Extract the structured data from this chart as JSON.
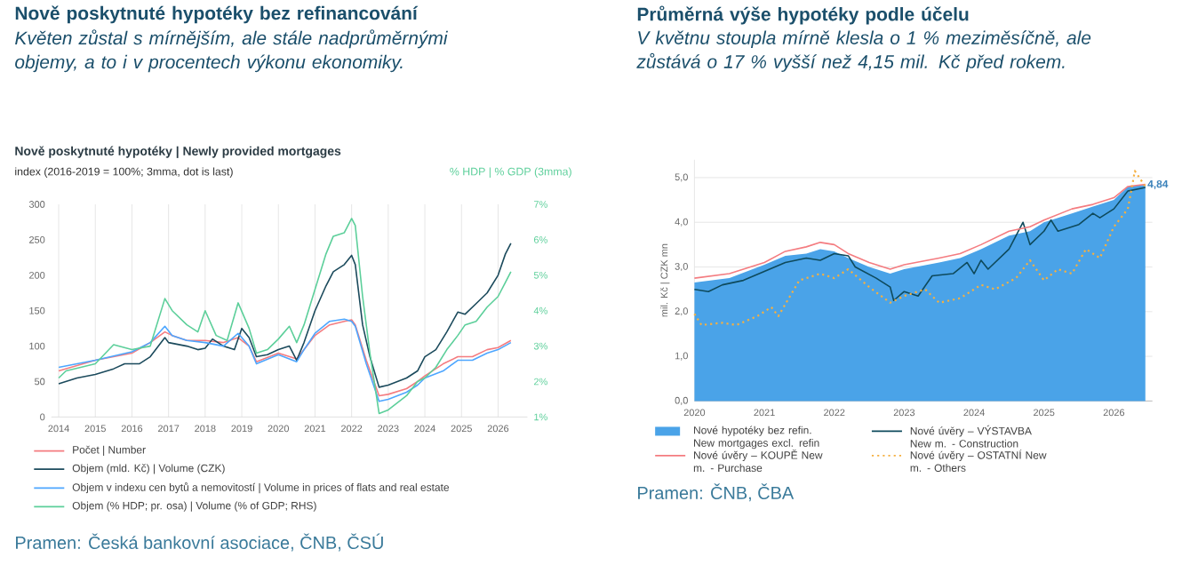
{
  "chart_data": [
    {
      "type": "line",
      "title": "Nově poskytnuté hypotéky bez refinancování",
      "subtitle": "Květen zůstal s mírnějším, ale stále nadprůměrnými objemy, a to i v procentech výkonu ekonomiky.",
      "annotations": [
        "Nově poskytnuté hypotéky | Newly provided mortgages",
        "index (2016-2019 = 100%; 3mma, dot is last)",
        "Pramen: Česká bankovní asociace, ČNB, ČSÚ"
      ],
      "y2label": "% HDP | % GDP (3mma)",
      "xlim": [
        2013.8,
        2026.8
      ],
      "xticks": [
        2014,
        2015,
        2016,
        2017,
        2018,
        2019,
        2020,
        2021,
        2022,
        2023,
        2024,
        2025,
        2026
      ],
      "ylim": [
        0,
        300
      ],
      "yticks": [
        0,
        50,
        100,
        150,
        200,
        250,
        300
      ],
      "y2lim": [
        1,
        7
      ],
      "y2ticks": [
        {
          "value": 1,
          "label": "1%"
        },
        {
          "value": 2,
          "label": "2%"
        },
        {
          "value": 3,
          "label": "3%"
        },
        {
          "value": 4,
          "label": "4%"
        },
        {
          "value": 5,
          "label": "5%"
        },
        {
          "value": 6,
          "label": "6%"
        },
        {
          "value": 7,
          "label": "7%"
        }
      ],
      "grid": "x",
      "legend": "bottom",
      "series": [
        {
          "name": "Počet | Number",
          "color": "#f47c80",
          "x": [
            2014,
            2015,
            2016,
            2016.5,
            2016.9,
            2017.1,
            2017.5,
            2018,
            2018.5,
            2018.9,
            2019.2,
            2019.4,
            2020,
            2020.5,
            2020.7,
            2021,
            2021.4,
            2021.8,
            2022,
            2022.1,
            2022.4,
            2022.75,
            2023,
            2023.5,
            2023.8,
            2024,
            2024.5,
            2024.9,
            2025.3,
            2025.7,
            2026,
            2026.35
          ],
          "values": [
            65,
            80,
            90,
            105,
            120,
            115,
            108,
            108,
            105,
            112,
            100,
            78,
            90,
            82,
            95,
            115,
            130,
            135,
            137,
            130,
            80,
            30,
            32,
            40,
            50,
            58,
            75,
            85,
            85,
            95,
            98,
            108
          ]
        },
        {
          "name": "Objem (mld. Kč) | Volume (CZK)",
          "color": "#1b4a5c",
          "x": [
            2014,
            2014.5,
            2015,
            2015.5,
            2015.8,
            2016.2,
            2016.5,
            2016.9,
            2017,
            2017.5,
            2017.8,
            2018,
            2018.2,
            2018.5,
            2018.8,
            2019,
            2019.2,
            2019.4,
            2019.7,
            2020,
            2020.3,
            2020.5,
            2020.7,
            2021,
            2021.3,
            2021.5,
            2021.8,
            2022,
            2022.1,
            2022.3,
            2022.5,
            2022.75,
            2023,
            2023.5,
            2023.8,
            2024,
            2024.3,
            2024.6,
            2024.9,
            2025.1,
            2025.4,
            2025.7,
            2026,
            2026.2,
            2026.35
          ],
          "values": [
            47,
            55,
            60,
            68,
            75,
            75,
            85,
            112,
            105,
            100,
            95,
            97,
            110,
            100,
            95,
            125,
            112,
            85,
            88,
            95,
            100,
            80,
            105,
            150,
            185,
            205,
            215,
            228,
            215,
            130,
            85,
            42,
            45,
            55,
            65,
            85,
            95,
            120,
            148,
            145,
            160,
            175,
            200,
            230,
            245
          ]
        },
        {
          "name": "Objem v indexu cen bytů a nemovitostí | Volume in prices of flats and real estate",
          "color": "#4da6ff",
          "x": [
            2014,
            2015,
            2016,
            2016.5,
            2016.9,
            2017.1,
            2017.5,
            2018,
            2018.5,
            2018.9,
            2019.2,
            2019.4,
            2020,
            2020.5,
            2020.7,
            2021,
            2021.4,
            2021.8,
            2022,
            2022.1,
            2022.4,
            2022.75,
            2023,
            2023.5,
            2023.8,
            2024,
            2024.5,
            2024.9,
            2025.3,
            2025.7,
            2026,
            2026.35
          ],
          "values": [
            70,
            80,
            92,
            105,
            128,
            115,
            108,
            105,
            100,
            118,
            100,
            75,
            88,
            78,
            95,
            118,
            135,
            138,
            135,
            128,
            75,
            22,
            25,
            35,
            45,
            55,
            65,
            80,
            80,
            90,
            95,
            105
          ]
        },
        {
          "name": "Objem (% HDP; pr. osa) | Volume (% of GDP; RHS)",
          "color": "#5ccf9a",
          "axis": "y2",
          "x": [
            2014,
            2014.2,
            2015,
            2015.5,
            2016,
            2016.5,
            2016.9,
            2017.1,
            2017.5,
            2017.8,
            2018.0,
            2018.3,
            2018.6,
            2018.9,
            2019.2,
            2019.4,
            2019.7,
            2020.0,
            2020.3,
            2020.5,
            2020.7,
            2021.0,
            2021.3,
            2021.5,
            2021.8,
            2022.0,
            2022.1,
            2022.3,
            2022.5,
            2022.75,
            2023.0,
            2023.5,
            2023.8,
            2024.0,
            2024.3,
            2024.6,
            2024.9,
            2025.1,
            2025.4,
            2025.7,
            2026.0,
            2026.2,
            2026.35
          ],
          "values": [
            2.1,
            2.3,
            2.5,
            3.04,
            2.9,
            3.0,
            4.34,
            4.0,
            3.6,
            3.4,
            4.0,
            3.3,
            3.16,
            4.22,
            3.5,
            2.8,
            2.9,
            3.2,
            3.56,
            3.1,
            3.6,
            4.6,
            5.6,
            6.1,
            6.2,
            6.6,
            6.4,
            4.4,
            2.8,
            1.1,
            1.2,
            1.6,
            2.0,
            2.1,
            2.4,
            2.9,
            3.3,
            3.6,
            3.7,
            4.1,
            4.4,
            4.8,
            5.1
          ]
        }
      ]
    },
    {
      "type": "line",
      "title": "Průměrná výše hypotéky podle účelu",
      "subtitle": "V květnu stoupla mírně klesla o 1 % meziměsíčně, ale zůstává o 17 % vyšší než 4,15 mil. Kč před rokem.",
      "annotations": [
        "Pramen: ČNB, ČBA"
      ],
      "ylabel": "mil. Kč | CZK mn",
      "xlim": [
        2020,
        2026.55
      ],
      "xticks": [
        2020,
        2021,
        2022,
        2023,
        2024,
        2025,
        2026
      ],
      "ylim": [
        0,
        5.4
      ],
      "yticks": [
        {
          "value": 0,
          "label": "0,0"
        },
        {
          "value": 1,
          "label": "1,0"
        },
        {
          "value": 2,
          "label": "2,0"
        },
        {
          "value": 3,
          "label": "3,0"
        },
        {
          "value": 4,
          "label": "4,0"
        },
        {
          "value": 5,
          "label": "5,0"
        }
      ],
      "grid": "y",
      "legend": "bottom",
      "series": [
        {
          "name": "Nové hypotéky bez refin. New mortgages excl. refin",
          "type": "area",
          "color": "#4aa3e8",
          "x": [
            2020,
            2020.5,
            2021,
            2021.3,
            2021.6,
            2021.8,
            2022,
            2022.2,
            2022.5,
            2022.8,
            2023,
            2023.5,
            2023.8,
            2024.1,
            2024.5,
            2024.8,
            2025,
            2025.4,
            2025.7,
            2026,
            2026.2,
            2026.45
          ],
          "values": [
            2.65,
            2.75,
            3.05,
            3.25,
            3.3,
            3.4,
            3.35,
            3.2,
            3.0,
            2.85,
            2.95,
            3.1,
            3.2,
            3.4,
            3.7,
            3.8,
            4.0,
            4.2,
            4.35,
            4.5,
            4.8,
            4.84
          ],
          "value_labels": [
            null,
            null,
            null,
            null,
            null,
            null,
            null,
            null,
            null,
            null,
            null,
            null,
            null,
            null,
            null,
            null,
            null,
            null,
            null,
            null,
            null,
            "4,84"
          ]
        },
        {
          "name": "Nové úvěry – VÝSTAVBA New m. - Construction",
          "color": "#0e4a5c",
          "x": [
            2020,
            2020.2,
            2020.4,
            2020.7,
            2021,
            2021.3,
            2021.6,
            2021.8,
            2022,
            2022.2,
            2022.3,
            2022.6,
            2022.8,
            2022.85,
            2023,
            2023.2,
            2023.4,
            2023.7,
            2023.9,
            2024,
            2024.1,
            2024.2,
            2024.5,
            2024.7,
            2024.8,
            2025,
            2025.1,
            2025.2,
            2025.5,
            2025.7,
            2025.8,
            2026,
            2026.2,
            2026.45
          ],
          "values": [
            2.5,
            2.45,
            2.6,
            2.7,
            2.9,
            3.1,
            3.2,
            3.15,
            3.3,
            3.25,
            3.0,
            2.75,
            2.55,
            2.25,
            2.45,
            2.35,
            2.8,
            2.85,
            3.1,
            2.85,
            3.15,
            2.95,
            3.4,
            4.0,
            3.5,
            3.8,
            4.05,
            3.8,
            3.95,
            4.2,
            4.1,
            4.3,
            4.7,
            4.78
          ]
        },
        {
          "name": "Nové úvěry – KOUPĚ New m. - Purchase",
          "color": "#f47c80",
          "x": [
            2020,
            2020.5,
            2021,
            2021.3,
            2021.6,
            2021.8,
            2022,
            2022.2,
            2022.5,
            2022.8,
            2023,
            2023.5,
            2023.8,
            2024.1,
            2024.5,
            2024.8,
            2025,
            2025.4,
            2025.7,
            2026,
            2026.2,
            2026.45
          ],
          "values": [
            2.75,
            2.85,
            3.1,
            3.35,
            3.45,
            3.55,
            3.5,
            3.3,
            3.1,
            2.95,
            3.05,
            3.2,
            3.3,
            3.5,
            3.8,
            3.9,
            4.05,
            4.3,
            4.4,
            4.55,
            4.8,
            4.85
          ]
        },
        {
          "name": "Nové úvěry – OSTATNÍ New m. - Others",
          "color": "#f5b041",
          "line_style": "dotted",
          "x": [
            2020,
            2020.1,
            2020.4,
            2020.6,
            2020.9,
            2021.1,
            2021.2,
            2021.5,
            2021.8,
            2022,
            2022.2,
            2022.5,
            2022.8,
            2023,
            2023.3,
            2023.5,
            2023.8,
            2024.1,
            2024.3,
            2024.6,
            2024.8,
            2025,
            2025.2,
            2025.4,
            2025.6,
            2025.8,
            2026,
            2026.2,
            2026.3,
            2026.45
          ],
          "values": [
            1.95,
            1.7,
            1.75,
            1.7,
            1.9,
            2.1,
            1.9,
            2.7,
            2.85,
            2.75,
            2.95,
            2.55,
            2.2,
            2.35,
            2.5,
            2.2,
            2.3,
            2.6,
            2.5,
            2.75,
            3.15,
            2.7,
            2.95,
            2.85,
            3.4,
            3.2,
            3.9,
            4.3,
            5.15,
            4.8
          ]
        }
      ]
    }
  ]
}
